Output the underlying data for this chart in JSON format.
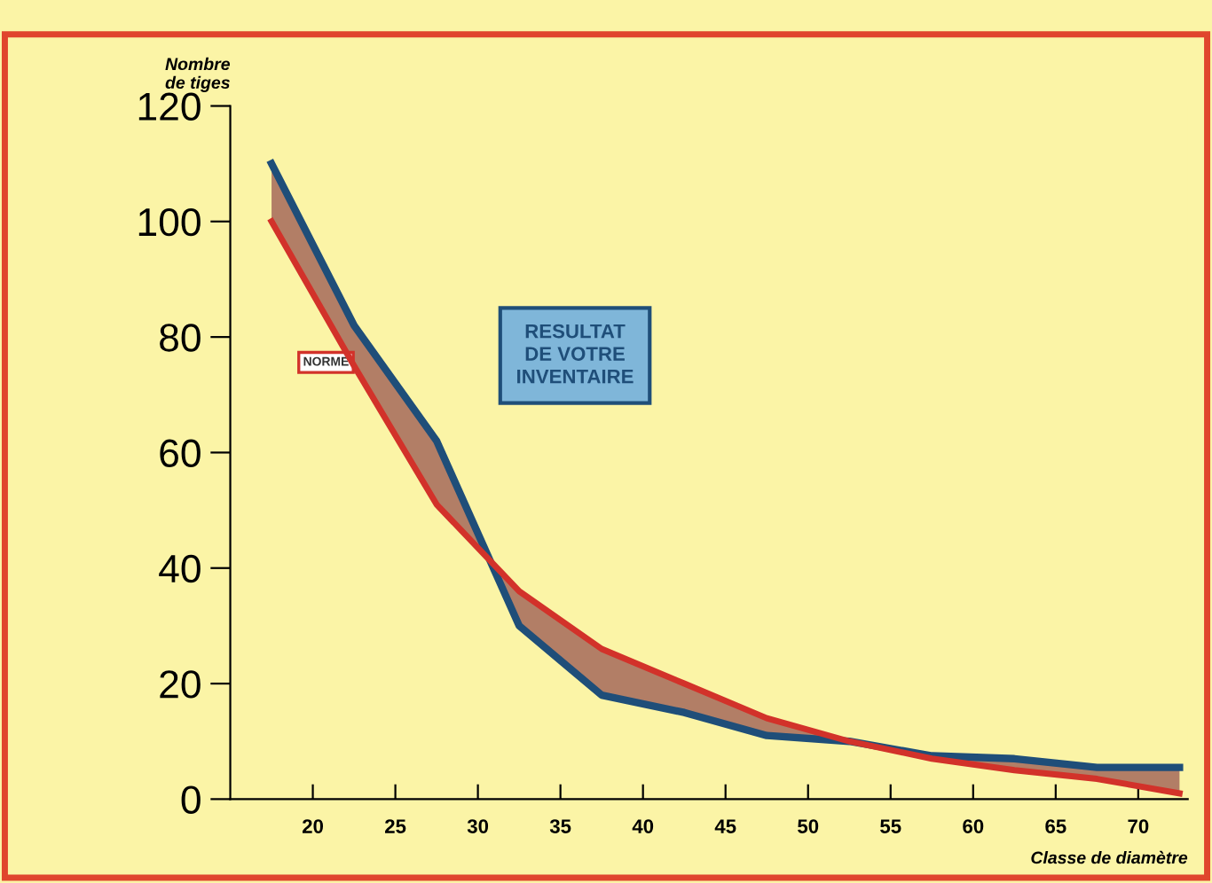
{
  "chart_data": {
    "type": "line",
    "xlabel": "Classe de diamètre",
    "ylabel": "Nombre\nde tiges",
    "x": [
      17.5,
      22.5,
      27.5,
      32.5,
      37.5,
      42.5,
      47.5,
      52.5,
      57.5,
      62.5,
      67.5,
      72.5
    ],
    "series": [
      {
        "name": "RESULTAT\nDE VOTRE\nINVENTAIRE",
        "color": "#1f4e79",
        "values": [
          110,
          82,
          62,
          30,
          18,
          15,
          11,
          10,
          7.5,
          7,
          5.5,
          5.5
        ],
        "lower": [
          100,
          75,
          51,
          36,
          26,
          20,
          14,
          10,
          7,
          5,
          3.5,
          1
        ],
        "upper": [
          110,
          82,
          62,
          30,
          18,
          15,
          11,
          10,
          7.5,
          7,
          5.5,
          5.5
        ]
      },
      {
        "name": "NORME",
        "color": "#d2322a",
        "values": [
          100,
          75,
          51,
          36,
          26,
          20,
          14,
          10,
          7,
          5,
          3.5,
          1
        ]
      }
    ],
    "xlim": [
      15,
      73
    ],
    "ylim": [
      0,
      120
    ],
    "xticks": [
      20,
      25,
      30,
      35,
      40,
      45,
      50,
      55,
      60,
      65,
      70
    ],
    "yticks": [
      0,
      20,
      40,
      60,
      80,
      100,
      120
    ],
    "grid": false,
    "legend": false,
    "marker": "none",
    "line_style": "solid"
  }
}
